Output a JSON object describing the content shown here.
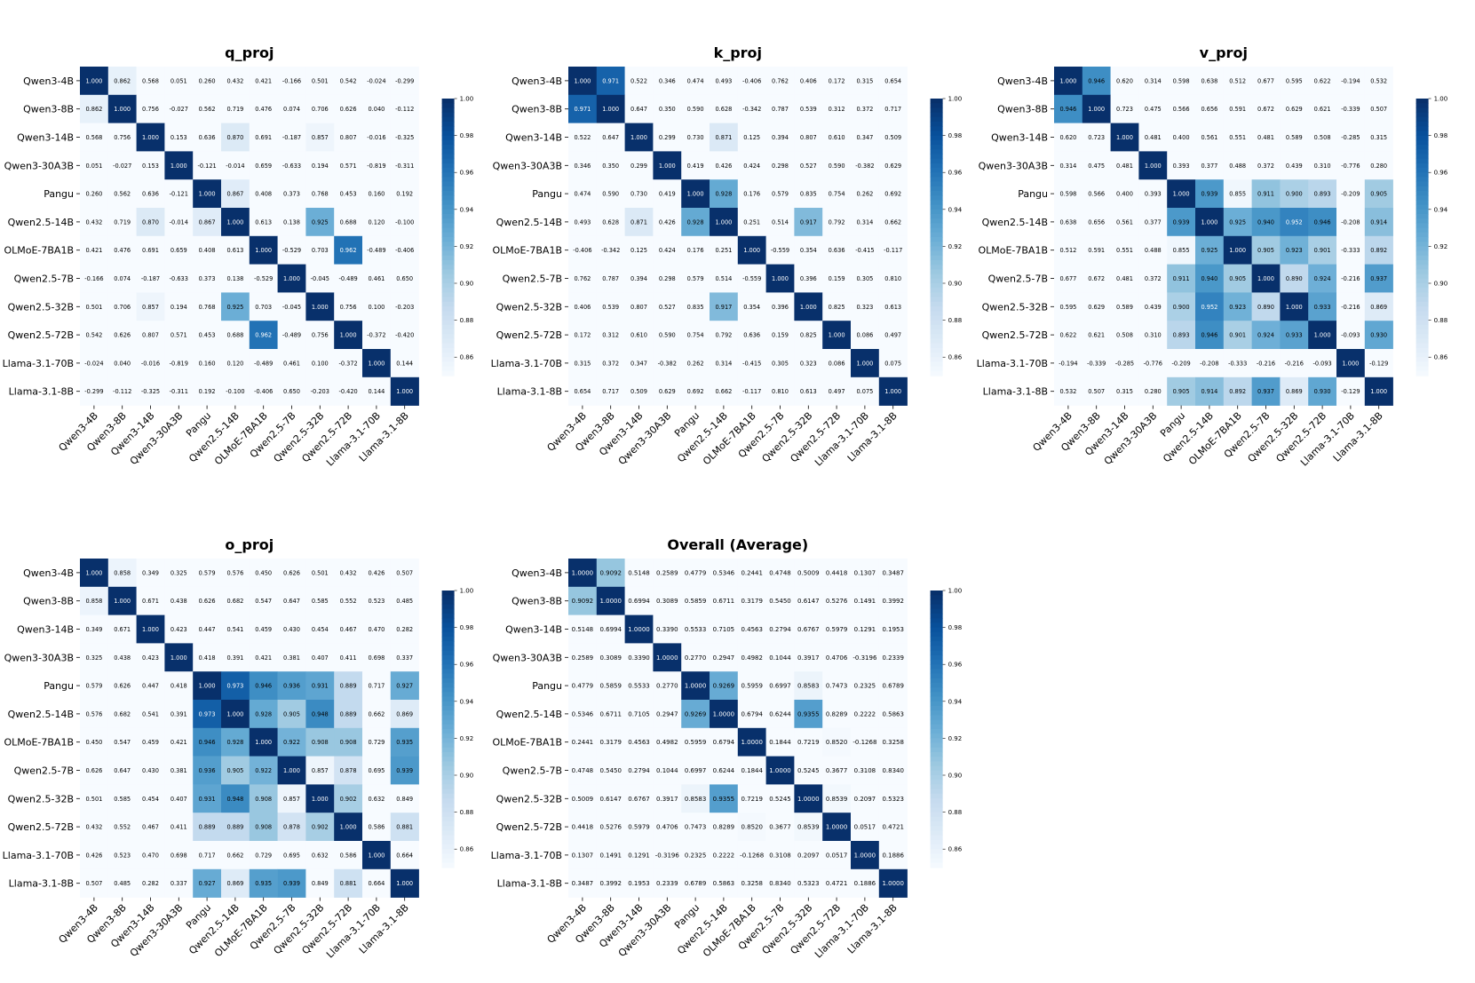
{
  "colors": {
    "low": "#f7fbff",
    "high": "#08306b",
    "overall_title": "#00008b",
    "title": "#000000"
  },
  "labels": [
    "Qwen3-4B",
    "Qwen3-8B",
    "Qwen3-14B",
    "Qwen3-30A3B",
    "Pangu",
    "Qwen2.5-14B",
    "OLMoE-7BA1B",
    "Qwen2.5-7B",
    "Qwen2.5-32B",
    "Qwen2.5-72B",
    "Llama-3.1-70B",
    "Llama-3.1-8B"
  ],
  "chart_data": [
    {
      "type": "heatmap",
      "title": "q_proj",
      "vmin": 0.85,
      "vmax": 1.0,
      "colorbar_ticks": [
        "0.86",
        "0.88",
        "0.90",
        "0.92",
        "0.94",
        "0.96",
        "0.98",
        "1.00"
      ],
      "values": [
        [
          "1.000",
          "0.862",
          "0.568",
          "0.051",
          "0.260",
          "0.432",
          "0.421",
          "-0.166",
          "0.501",
          "0.542",
          "-0.024",
          "-0.299"
        ],
        [
          "0.862",
          "1.000",
          "0.756",
          "-0.027",
          "0.562",
          "0.719",
          "0.476",
          "0.074",
          "0.706",
          "0.626",
          "0.040",
          "-0.112"
        ],
        [
          "0.568",
          "0.756",
          "1.000",
          "0.153",
          "0.636",
          "0.870",
          "0.691",
          "-0.187",
          "0.857",
          "0.807",
          "-0.016",
          "-0.325"
        ],
        [
          "0.051",
          "-0.027",
          "0.153",
          "1.000",
          "-0.121",
          "-0.014",
          "0.659",
          "-0.633",
          "0.194",
          "0.571",
          "-0.819",
          "-0.311"
        ],
        [
          "0.260",
          "0.562",
          "0.636",
          "-0.121",
          "1.000",
          "0.867",
          "0.408",
          "0.373",
          "0.768",
          "0.453",
          "0.160",
          "0.192"
        ],
        [
          "0.432",
          "0.719",
          "0.870",
          "-0.014",
          "0.867",
          "1.000",
          "0.613",
          "0.138",
          "0.925",
          "0.688",
          "0.120",
          "-0.100"
        ],
        [
          "0.421",
          "0.476",
          "0.691",
          "0.659",
          "0.408",
          "0.613",
          "1.000",
          "-0.529",
          "0.703",
          "0.962",
          "-0.489",
          "-0.406"
        ],
        [
          "-0.166",
          "0.074",
          "-0.187",
          "-0.633",
          "0.373",
          "0.138",
          "-0.529",
          "1.000",
          "-0.045",
          "-0.489",
          "0.461",
          "0.650"
        ],
        [
          "0.501",
          "0.706",
          "0.857",
          "0.194",
          "0.768",
          "0.925",
          "0.703",
          "-0.045",
          "1.000",
          "0.756",
          "0.100",
          "-0.203"
        ],
        [
          "0.542",
          "0.626",
          "0.807",
          "0.571",
          "0.453",
          "0.688",
          "0.962",
          "-0.489",
          "0.756",
          "1.000",
          "-0.372",
          "-0.420"
        ],
        [
          "-0.024",
          "0.040",
          "-0.016",
          "-0.819",
          "0.160",
          "0.120",
          "-0.489",
          "0.461",
          "0.100",
          "-0.372",
          "1.000",
          "0.144"
        ],
        [
          "-0.299",
          "-0.112",
          "-0.325",
          "-0.311",
          "0.192",
          "-0.100",
          "-0.406",
          "0.650",
          "-0.203",
          "-0.420",
          "0.144",
          "1.000"
        ]
      ]
    },
    {
      "type": "heatmap",
      "title": "k_proj",
      "vmin": 0.85,
      "vmax": 1.0,
      "colorbar_ticks": [
        "0.86",
        "0.88",
        "0.90",
        "0.92",
        "0.94",
        "0.96",
        "0.98",
        "1.00"
      ],
      "values": [
        [
          "1.000",
          "0.971",
          "0.522",
          "0.346",
          "0.474",
          "0.493",
          "-0.406",
          "0.762",
          "0.406",
          "0.172",
          "0.315",
          "0.654"
        ],
        [
          "0.971",
          "1.000",
          "0.647",
          "0.350",
          "0.590",
          "0.628",
          "-0.342",
          "0.787",
          "0.539",
          "0.312",
          "0.372",
          "0.717"
        ],
        [
          "0.522",
          "0.647",
          "1.000",
          "0.299",
          "0.730",
          "0.871",
          "0.125",
          "0.394",
          "0.807",
          "0.610",
          "0.347",
          "0.509"
        ],
        [
          "0.346",
          "0.350",
          "0.299",
          "1.000",
          "0.419",
          "0.426",
          "0.424",
          "0.298",
          "0.527",
          "0.590",
          "-0.382",
          "0.629"
        ],
        [
          "0.474",
          "0.590",
          "0.730",
          "0.419",
          "1.000",
          "0.928",
          "0.176",
          "0.579",
          "0.835",
          "0.754",
          "0.262",
          "0.692"
        ],
        [
          "0.493",
          "0.628",
          "0.871",
          "0.426",
          "0.928",
          "1.000",
          "0.251",
          "0.514",
          "0.917",
          "0.792",
          "0.314",
          "0.662"
        ],
        [
          "-0.406",
          "-0.342",
          "0.125",
          "0.424",
          "0.176",
          "0.251",
          "1.000",
          "-0.559",
          "0.354",
          "0.636",
          "-0.415",
          "-0.117"
        ],
        [
          "0.762",
          "0.787",
          "0.394",
          "0.298",
          "0.579",
          "0.514",
          "-0.559",
          "1.000",
          "0.396",
          "0.159",
          "0.305",
          "0.810"
        ],
        [
          "0.406",
          "0.539",
          "0.807",
          "0.527",
          "0.835",
          "0.917",
          "0.354",
          "0.396",
          "1.000",
          "0.825",
          "0.323",
          "0.613"
        ],
        [
          "0.172",
          "0.312",
          "0.610",
          "0.590",
          "0.754",
          "0.792",
          "0.636",
          "0.159",
          "0.825",
          "1.000",
          "0.086",
          "0.497"
        ],
        [
          "0.315",
          "0.372",
          "0.347",
          "-0.382",
          "0.262",
          "0.314",
          "-0.415",
          "0.305",
          "0.323",
          "0.086",
          "1.000",
          "0.075"
        ],
        [
          "0.654",
          "0.717",
          "0.509",
          "0.629",
          "0.692",
          "0.662",
          "-0.117",
          "0.810",
          "0.613",
          "0.497",
          "0.075",
          "1.000"
        ]
      ]
    },
    {
      "type": "heatmap",
      "title": "v_proj",
      "vmin": 0.85,
      "vmax": 1.0,
      "colorbar_ticks": [
        "0.86",
        "0.88",
        "0.90",
        "0.92",
        "0.94",
        "0.96",
        "0.98",
        "1.00"
      ],
      "values": [
        [
          "1.000",
          "0.946",
          "0.620",
          "0.314",
          "0.598",
          "0.638",
          "0.512",
          "0.677",
          "0.595",
          "0.622",
          "-0.194",
          "0.532"
        ],
        [
          "0.946",
          "1.000",
          "0.723",
          "0.475",
          "0.566",
          "0.656",
          "0.591",
          "0.672",
          "0.629",
          "0.621",
          "-0.339",
          "0.507"
        ],
        [
          "0.620",
          "0.723",
          "1.000",
          "0.481",
          "0.400",
          "0.561",
          "0.551",
          "0.481",
          "0.589",
          "0.508",
          "-0.285",
          "0.315"
        ],
        [
          "0.314",
          "0.475",
          "0.481",
          "1.000",
          "0.393",
          "0.377",
          "0.488",
          "0.372",
          "0.439",
          "0.310",
          "-0.776",
          "0.280"
        ],
        [
          "0.598",
          "0.566",
          "0.400",
          "0.393",
          "1.000",
          "0.939",
          "0.855",
          "0.911",
          "0.900",
          "0.893",
          "-0.209",
          "0.905"
        ],
        [
          "0.638",
          "0.656",
          "0.561",
          "0.377",
          "0.939",
          "1.000",
          "0.925",
          "0.940",
          "0.952",
          "0.946",
          "-0.208",
          "0.914"
        ],
        [
          "0.512",
          "0.591",
          "0.551",
          "0.488",
          "0.855",
          "0.925",
          "1.000",
          "0.905",
          "0.923",
          "0.901",
          "-0.333",
          "0.892"
        ],
        [
          "0.677",
          "0.672",
          "0.481",
          "0.372",
          "0.911",
          "0.940",
          "0.905",
          "1.000",
          "0.890",
          "0.924",
          "-0.216",
          "0.937"
        ],
        [
          "0.595",
          "0.629",
          "0.589",
          "0.439",
          "0.900",
          "0.952",
          "0.923",
          "0.890",
          "1.000",
          "0.933",
          "-0.216",
          "0.869"
        ],
        [
          "0.622",
          "0.621",
          "0.508",
          "0.310",
          "0.893",
          "0.946",
          "0.901",
          "0.924",
          "0.933",
          "1.000",
          "-0.093",
          "0.930"
        ],
        [
          "-0.194",
          "-0.339",
          "-0.285",
          "-0.776",
          "-0.209",
          "-0.208",
          "-0.333",
          "-0.216",
          "-0.216",
          "-0.093",
          "1.000",
          "-0.129"
        ],
        [
          "0.532",
          "0.507",
          "0.315",
          "0.280",
          "0.905",
          "0.914",
          "0.892",
          "0.937",
          "0.869",
          "0.930",
          "-0.129",
          "1.000"
        ]
      ]
    },
    {
      "type": "heatmap",
      "title": "o_proj",
      "vmin": 0.85,
      "vmax": 1.0,
      "colorbar_ticks": [
        "0.86",
        "0.88",
        "0.90",
        "0.92",
        "0.94",
        "0.96",
        "0.98",
        "1.00"
      ],
      "values": [
        [
          "1.000",
          "0.858",
          "0.349",
          "0.325",
          "0.579",
          "0.576",
          "0.450",
          "0.626",
          "0.501",
          "0.432",
          "0.426",
          "0.507"
        ],
        [
          "0.858",
          "1.000",
          "0.671",
          "0.438",
          "0.626",
          "0.682",
          "0.547",
          "0.647",
          "0.585",
          "0.552",
          "0.523",
          "0.485"
        ],
        [
          "0.349",
          "0.671",
          "1.000",
          "0.423",
          "0.447",
          "0.541",
          "0.459",
          "0.430",
          "0.454",
          "0.467",
          "0.470",
          "0.282"
        ],
        [
          "0.325",
          "0.438",
          "0.423",
          "1.000",
          "0.418",
          "0.391",
          "0.421",
          "0.381",
          "0.407",
          "0.411",
          "0.698",
          "0.337"
        ],
        [
          "0.579",
          "0.626",
          "0.447",
          "0.418",
          "1.000",
          "0.973",
          "0.946",
          "0.936",
          "0.931",
          "0.889",
          "0.717",
          "0.927"
        ],
        [
          "0.576",
          "0.682",
          "0.541",
          "0.391",
          "0.973",
          "1.000",
          "0.928",
          "0.905",
          "0.948",
          "0.889",
          "0.662",
          "0.869"
        ],
        [
          "0.450",
          "0.547",
          "0.459",
          "0.421",
          "0.946",
          "0.928",
          "1.000",
          "0.922",
          "0.908",
          "0.908",
          "0.729",
          "0.935"
        ],
        [
          "0.626",
          "0.647",
          "0.430",
          "0.381",
          "0.936",
          "0.905",
          "0.922",
          "1.000",
          "0.857",
          "0.878",
          "0.695",
          "0.939"
        ],
        [
          "0.501",
          "0.585",
          "0.454",
          "0.407",
          "0.931",
          "0.948",
          "0.908",
          "0.857",
          "1.000",
          "0.902",
          "0.632",
          "0.849"
        ],
        [
          "0.432",
          "0.552",
          "0.467",
          "0.411",
          "0.889",
          "0.889",
          "0.908",
          "0.878",
          "0.902",
          "1.000",
          "0.586",
          "0.881"
        ],
        [
          "0.426",
          "0.523",
          "0.470",
          "0.698",
          "0.717",
          "0.662",
          "0.729",
          "0.695",
          "0.632",
          "0.586",
          "1.000",
          "0.664"
        ],
        [
          "0.507",
          "0.485",
          "0.282",
          "0.337",
          "0.927",
          "0.869",
          "0.935",
          "0.939",
          "0.849",
          "0.881",
          "0.664",
          "1.000"
        ]
      ]
    },
    {
      "type": "heatmap",
      "title": "Overall (Average)",
      "vmin": 0.85,
      "vmax": 1.0,
      "colorbar_ticks": [
        "0.86",
        "0.88",
        "0.90",
        "0.92",
        "0.94",
        "0.96",
        "0.98",
        "1.00"
      ],
      "values": [
        [
          "1.0000",
          "0.9092",
          "0.5148",
          "0.2589",
          "0.4779",
          "0.5346",
          "0.2441",
          "0.4748",
          "0.5009",
          "0.4418",
          "0.1307",
          "0.3487"
        ],
        [
          "0.9092",
          "1.0000",
          "0.6994",
          "0.3089",
          "0.5859",
          "0.6711",
          "0.3179",
          "0.5450",
          "0.6147",
          "0.5276",
          "0.1491",
          "0.3992"
        ],
        [
          "0.5148",
          "0.6994",
          "1.0000",
          "0.3390",
          "0.5533",
          "0.7105",
          "0.4563",
          "0.2794",
          "0.6767",
          "0.5979",
          "0.1291",
          "0.1953"
        ],
        [
          "0.2589",
          "0.3089",
          "0.3390",
          "1.0000",
          "0.2770",
          "0.2947",
          "0.4982",
          "0.1044",
          "0.3917",
          "0.4706",
          "-0.3196",
          "0.2339"
        ],
        [
          "0.4779",
          "0.5859",
          "0.5533",
          "0.2770",
          "1.0000",
          "0.9269",
          "0.5959",
          "0.6997",
          "0.8583",
          "0.7473",
          "0.2325",
          "0.6789"
        ],
        [
          "0.5346",
          "0.6711",
          "0.7105",
          "0.2947",
          "0.9269",
          "1.0000",
          "0.6794",
          "0.6244",
          "0.9355",
          "0.8289",
          "0.2222",
          "0.5863"
        ],
        [
          "0.2441",
          "0.3179",
          "0.4563",
          "0.4982",
          "0.5959",
          "0.6794",
          "1.0000",
          "0.1844",
          "0.7219",
          "0.8520",
          "-0.1268",
          "0.3258"
        ],
        [
          "0.4748",
          "0.5450",
          "0.2794",
          "0.1044",
          "0.6997",
          "0.6244",
          "0.1844",
          "1.0000",
          "0.5245",
          "0.3677",
          "0.3108",
          "0.8340"
        ],
        [
          "0.5009",
          "0.6147",
          "0.6767",
          "0.3917",
          "0.8583",
          "0.9355",
          "0.7219",
          "0.5245",
          "1.0000",
          "0.8539",
          "0.2097",
          "0.5323"
        ],
        [
          "0.4418",
          "0.5276",
          "0.5979",
          "0.4706",
          "0.7473",
          "0.8289",
          "0.8520",
          "0.3677",
          "0.8539",
          "1.0000",
          "0.0517",
          "0.4721"
        ],
        [
          "0.1307",
          "0.1491",
          "0.1291",
          "-0.3196",
          "0.2325",
          "0.2222",
          "-0.1268",
          "0.3108",
          "0.2097",
          "0.0517",
          "1.0000",
          "0.1886"
        ],
        [
          "0.3487",
          "0.3992",
          "0.1953",
          "0.2339",
          "0.6789",
          "0.5863",
          "0.3258",
          "0.8340",
          "0.5323",
          "0.4721",
          "0.1886",
          "1.0000"
        ]
      ]
    }
  ]
}
